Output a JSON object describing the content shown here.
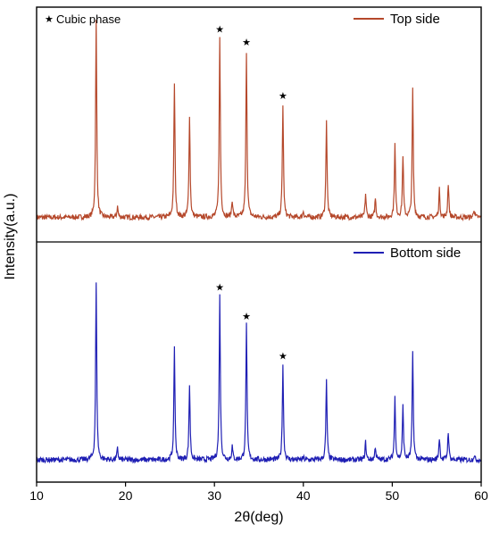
{
  "chart_data": {
    "type": "line",
    "xlabel": "2θ(deg)",
    "ylabel": "Intensity(a.u.)",
    "xlim": [
      10,
      60
    ],
    "x_ticks": [
      10,
      20,
      30,
      40,
      50,
      60
    ],
    "annotation": "Cubic phase",
    "annotation_marker": "★",
    "grid": false,
    "layout": "two stacked panels sharing the x-axis",
    "colors": {
      "top": "#b5482b",
      "bottom": "#1f1fb4",
      "axes": "#000000"
    },
    "series": [
      {
        "name": "Top side",
        "panel": "top",
        "baseline": 4,
        "ylim": [
          0,
          100
        ],
        "peaks": [
          {
            "x": 16.7,
            "y": 96
          },
          {
            "x": 19.1,
            "y": 9
          },
          {
            "x": 25.5,
            "y": 67
          },
          {
            "x": 27.2,
            "y": 52
          },
          {
            "x": 30.6,
            "y": 88,
            "starred": true
          },
          {
            "x": 32.0,
            "y": 12
          },
          {
            "x": 33.6,
            "y": 82,
            "starred": true
          },
          {
            "x": 37.7,
            "y": 57,
            "starred": true
          },
          {
            "x": 40.0,
            "y": 7
          },
          {
            "x": 42.6,
            "y": 50
          },
          {
            "x": 47.0,
            "y": 15
          },
          {
            "x": 48.1,
            "y": 13
          },
          {
            "x": 50.3,
            "y": 38
          },
          {
            "x": 51.2,
            "y": 33
          },
          {
            "x": 52.3,
            "y": 64
          },
          {
            "x": 55.3,
            "y": 17
          },
          {
            "x": 56.3,
            "y": 20
          },
          {
            "x": 59.2,
            "y": 8
          }
        ]
      },
      {
        "name": "Bottom side",
        "panel": "bottom",
        "baseline": 4,
        "ylim": [
          0,
          100
        ],
        "peaks": [
          {
            "x": 16.7,
            "y": 84
          },
          {
            "x": 19.1,
            "y": 9
          },
          {
            "x": 25.5,
            "y": 54
          },
          {
            "x": 27.2,
            "y": 38
          },
          {
            "x": 30.6,
            "y": 78,
            "starred": true
          },
          {
            "x": 32.0,
            "y": 10
          },
          {
            "x": 33.6,
            "y": 65,
            "starred": true
          },
          {
            "x": 37.7,
            "y": 47,
            "starred": true
          },
          {
            "x": 40.0,
            "y": 5
          },
          {
            "x": 42.6,
            "y": 40
          },
          {
            "x": 47.0,
            "y": 12
          },
          {
            "x": 48.1,
            "y": 10
          },
          {
            "x": 50.3,
            "y": 32
          },
          {
            "x": 51.2,
            "y": 28
          },
          {
            "x": 52.3,
            "y": 52
          },
          {
            "x": 55.3,
            "y": 14
          },
          {
            "x": 56.3,
            "y": 17
          },
          {
            "x": 59.2,
            "y": 6
          }
        ]
      }
    ]
  }
}
